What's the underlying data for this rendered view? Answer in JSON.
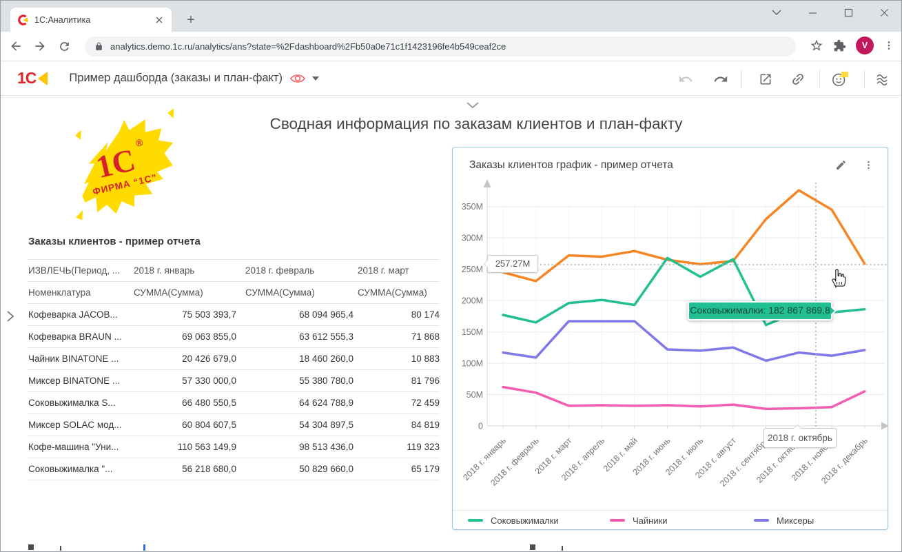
{
  "browser": {
    "tab_title": "1С:Аналитика",
    "url": "analytics.demo.1c.ru/analytics/ans?state=%2Fdashboard%2Fb50a0e71c1f1423196fe4b549ceaf2ce",
    "avatar_letter": "V",
    "avatar_color": "#C2185B"
  },
  "app_header": {
    "logo_text": "1С",
    "title": "Пример дашборда (заказы и план-факт)"
  },
  "page": {
    "title": "Сводная информация по заказам клиентов и план-факту"
  },
  "brand_logo": {
    "text_main": "1С",
    "text_reg": "®",
    "text_sub": "ФИРМА “1С”",
    "bg_color": "#FFDB00",
    "text_color": "#D6212B"
  },
  "report_table": {
    "title": "Заказы клиентов - пример отчета",
    "header_row1": [
      "ИЗВЛЕЧЬ(Период, ...",
      "2018 г. январь",
      "2018 г. февраль",
      "2018 г. март"
    ],
    "header_row2": [
      "Номенклатура",
      "СУММА(Сумма)",
      "СУММА(Сумма)",
      "СУММА(Сумма)"
    ],
    "rows": [
      [
        "Кофеварка JACOB...",
        "75 503 393,7",
        "68 094 965,4",
        "80 174"
      ],
      [
        "Кофеварка BRAUN ...",
        "69 063 855,0",
        "63 612 555,3",
        "71 868"
      ],
      [
        "Чайник BINATONE  ...",
        "20 426 679,0",
        "18 460 260,0",
        "10 883"
      ],
      [
        "Миксер BINATONE ...",
        "57 330 000,0",
        "55 380 780,0",
        "81 796"
      ],
      [
        "Соковыжималка  S...",
        "66 480 550,5",
        "64 624 788,9",
        "72 459"
      ],
      [
        "Миксер SOLAC мод...",
        "60 804 607,5",
        "54 304 897,5",
        "84 819"
      ],
      [
        "Кофе-машина \"Уни...",
        "110 563 149,9",
        "98 513 436,0",
        "119 323"
      ],
      [
        "Соковыжималка \"...",
        "56 218 680,0",
        "50 829 660,0",
        "65 179"
      ]
    ]
  },
  "chart_card": {
    "title": "Заказы клиентов график - пример отчета"
  },
  "chart_data": {
    "type": "line",
    "title": "Заказы клиентов график - пример отчета",
    "unit": "millions of rubles (M)",
    "x": [
      "2018 г. январь",
      "2018 г. февраль",
      "2018 г. март",
      "2018 г. апрель",
      "2018 г. май",
      "2018 г. июнь",
      "2018 г. июль",
      "2018 г. август",
      "2018 г. сентябрь",
      "2018 г. октябрь",
      "2018 г. ноябрь",
      "2018 г. декабрь"
    ],
    "series": [
      {
        "name": "",
        "color": "#F68623",
        "values": [
          245,
          231,
          272,
          270,
          279,
          265,
          258,
          263,
          330,
          376,
          345,
          259
        ]
      },
      {
        "name": "Соковыжималки",
        "color": "#21BF92",
        "values": [
          177,
          165,
          196,
          201,
          193,
          268,
          238,
          266,
          161,
          182.87,
          181,
          186
        ]
      },
      {
        "name": "Миксеры",
        "color": "#8077E9",
        "values": [
          117,
          109,
          167,
          167,
          167,
          122,
          120,
          125,
          104,
          117,
          112,
          121
        ]
      },
      {
        "name": "Чайники",
        "color": "#F35DB1",
        "values": [
          62,
          53,
          32,
          33,
          32,
          33,
          31,
          34,
          27,
          28,
          30,
          55
        ]
      }
    ],
    "ylim": [
      0,
      385
    ],
    "yticks": [
      "0",
      "50M",
      "100M",
      "150M",
      "200M",
      "250M",
      "300M",
      "350M"
    ],
    "grid": true,
    "legend_position": "bottom",
    "legend": [
      {
        "label": "Соковыжималки",
        "color": "#21BF92"
      },
      {
        "label": "Чайники",
        "color": "#F35DB1"
      },
      {
        "label": "Миксеры",
        "color": "#8077E9"
      }
    ],
    "crosshair": {
      "y_value": 257.27,
      "y_label": "257.27M",
      "x_label": "2018 г. октябрь"
    },
    "tooltip": {
      "series": "Соковыжималки",
      "value": "182 867 869,8",
      "text": "Соковыжималки: 182 867 869,8"
    }
  }
}
